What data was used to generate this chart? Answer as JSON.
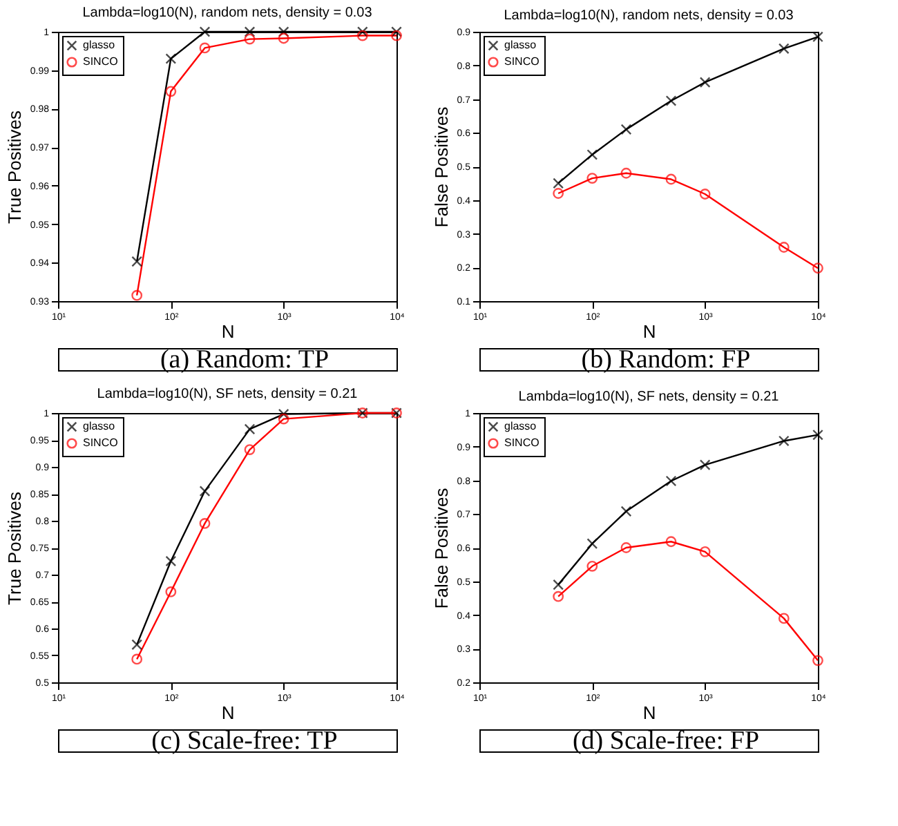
{
  "chart_data": [
    {
      "type": "line",
      "title": "Lambda=log10(N), random nets,  density = 0.03",
      "xlabel": "N",
      "ylabel": "True Positives",
      "annotations": [
        "(a) Random: TP"
      ],
      "log": "x",
      "grid": false,
      "legend": "top left",
      "x": [
        50,
        100,
        200,
        500,
        1000,
        5000,
        10000
      ],
      "xlim": [
        10,
        10000
      ],
      "xticks": [
        {
          "value": 10,
          "label": "10¹"
        },
        {
          "value": 100,
          "label": "10²"
        },
        {
          "value": 1000,
          "label": "10³"
        },
        {
          "value": 10000,
          "label": "10⁴"
        }
      ],
      "ylim": [
        0.93,
        1
      ],
      "yticks": [
        0.93,
        0.94,
        0.95,
        0.96,
        0.97,
        0.98,
        0.99,
        1
      ],
      "series": [
        {
          "name": "glasso",
          "color": "#000000",
          "marker": "cross",
          "values": [
            0.9403,
            0.993,
            1.0,
            1.0,
            1.0,
            1.0,
            1.0
          ]
        },
        {
          "name": "SINCO",
          "color": "#ff0000",
          "marker": "circle",
          "values": [
            0.9315,
            0.9845,
            0.9958,
            0.9981,
            0.9983,
            0.999,
            0.999
          ]
        }
      ]
    },
    {
      "type": "line",
      "title": "Lambda=log10(N), random nets,  density = 0.03",
      "xlabel": "N",
      "ylabel": "False Positives",
      "annotations": [
        "(b) Random: FP"
      ],
      "log": "x",
      "grid": false,
      "legend": "top left",
      "x": [
        50,
        100,
        200,
        500,
        1000,
        5000,
        10000
      ],
      "xlim": [
        10,
        10000
      ],
      "xticks": [
        {
          "value": 10,
          "label": "10¹"
        },
        {
          "value": 100,
          "label": "10²"
        },
        {
          "value": 1000,
          "label": "10³"
        },
        {
          "value": 10000,
          "label": "10⁴"
        }
      ],
      "ylim": [
        0.1,
        0.9
      ],
      "yticks": [
        0.1,
        0.2,
        0.3,
        0.4,
        0.5,
        0.6,
        0.7,
        0.8,
        0.9
      ],
      "series": [
        {
          "name": "glasso",
          "color": "#000000",
          "marker": "cross",
          "values": [
            0.45,
            0.535,
            0.61,
            0.695,
            0.75,
            0.85,
            0.885
          ]
        },
        {
          "name": "SINCO",
          "color": "#ff0000",
          "marker": "circle",
          "values": [
            0.42,
            0.465,
            0.48,
            0.462,
            0.418,
            0.26,
            0.198
          ]
        }
      ]
    },
    {
      "type": "line",
      "title": "Lambda=log10(N), SF nets,  density = 0.21",
      "xlabel": "N",
      "ylabel": "True Positives",
      "annotations": [
        "(c) Scale-free: TP"
      ],
      "log": "x",
      "grid": false,
      "legend": "top left",
      "x": [
        50,
        100,
        200,
        500,
        1000,
        5000,
        10000
      ],
      "xlim": [
        10,
        10000
      ],
      "xticks": [
        {
          "value": 10,
          "label": "10¹"
        },
        {
          "value": 100,
          "label": "10²"
        },
        {
          "value": 1000,
          "label": "10³"
        },
        {
          "value": 10000,
          "label": "10⁴"
        }
      ],
      "ylim": [
        0.5,
        1
      ],
      "yticks": [
        0.5,
        0.55,
        0.6,
        0.65,
        0.7,
        0.75,
        0.8,
        0.85,
        0.9,
        0.95,
        1
      ],
      "series": [
        {
          "name": "glasso",
          "color": "#000000",
          "marker": "cross",
          "values": [
            0.57,
            0.725,
            0.855,
            0.97,
            0.998,
            1.0,
            1.0
          ]
        },
        {
          "name": "SINCO",
          "color": "#ff0000",
          "marker": "circle",
          "values": [
            0.543,
            0.668,
            0.795,
            0.932,
            0.989,
            1.0,
            1.0
          ]
        }
      ]
    },
    {
      "type": "line",
      "title": "Lambda=log10(N), SF nets,  density = 0.21",
      "xlabel": "N",
      "ylabel": "False Positives",
      "annotations": [
        "(d) Scale-free: FP"
      ],
      "log": "x",
      "grid": false,
      "legend": "top left",
      "x": [
        50,
        100,
        200,
        500,
        1000,
        5000,
        10000
      ],
      "xlim": [
        10,
        10000
      ],
      "xticks": [
        {
          "value": 10,
          "label": "10¹"
        },
        {
          "value": 100,
          "label": "10²"
        },
        {
          "value": 1000,
          "label": "10³"
        },
        {
          "value": 10000,
          "label": "10⁴"
        }
      ],
      "ylim": [
        0.2,
        1
      ],
      "yticks": [
        0.2,
        0.3,
        0.4,
        0.5,
        0.6,
        0.7,
        0.8,
        0.9,
        1
      ],
      "series": [
        {
          "name": "glasso",
          "color": "#000000",
          "marker": "cross",
          "values": [
            0.49,
            0.612,
            0.708,
            0.798,
            0.846,
            0.917,
            0.935
          ]
        },
        {
          "name": "SINCO",
          "color": "#ff0000",
          "marker": "circle",
          "values": [
            0.455,
            0.545,
            0.6,
            0.618,
            0.588,
            0.39,
            0.265
          ]
        }
      ]
    }
  ]
}
